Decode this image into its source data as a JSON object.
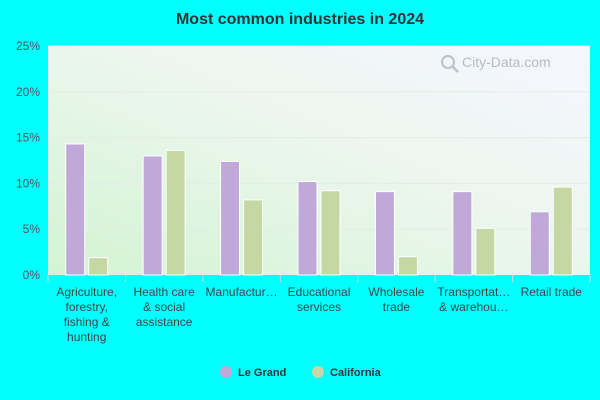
{
  "chart_data": {
    "type": "bar",
    "title": "Most common industries in 2024",
    "categories": [
      [
        "Agriculture,",
        "forestry,",
        "fishing &",
        "hunting"
      ],
      [
        "Health care",
        "& social",
        "assistance"
      ],
      [
        "Manufactur…"
      ],
      [
        "Educational",
        "services"
      ],
      [
        "Wholesale",
        "trade"
      ],
      [
        "Transportat…",
        "& warehou…"
      ],
      [
        "Retail trade"
      ]
    ],
    "series": [
      {
        "name": "Le Grand",
        "color": "#c0a8d8",
        "values": [
          14.3,
          13.0,
          12.4,
          10.2,
          9.1,
          9.1,
          6.9
        ]
      },
      {
        "name": "California",
        "color": "#c5d8a4",
        "values": [
          1.9,
          13.6,
          8.2,
          9.2,
          2.0,
          5.1,
          9.6
        ]
      }
    ],
    "ylim": [
      0,
      25
    ],
    "yticks": [
      {
        "value": 0,
        "label": "0%"
      },
      {
        "value": 5,
        "label": "5%"
      },
      {
        "value": 10,
        "label": "10%"
      },
      {
        "value": 15,
        "label": "15%"
      },
      {
        "value": 20,
        "label": "20%"
      },
      {
        "value": 25,
        "label": "25%"
      }
    ],
    "grid": true,
    "legend_position": "bottom"
  },
  "watermark": {
    "text": "City-Data.com",
    "icon": "magnifier-icon"
  }
}
